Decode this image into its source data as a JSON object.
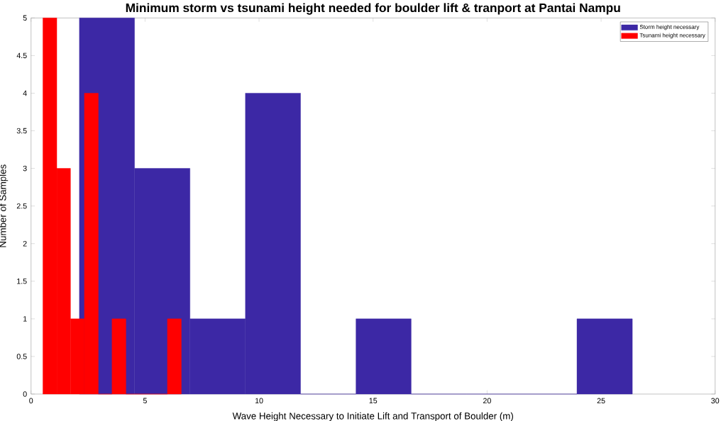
{
  "chart_data": {
    "type": "histogram",
    "title": "Minimum storm vs tsunami height needed for boulder lift & tranport at Pantai Nampu",
    "xlabel": "Wave Height Necessary to Initiate Lift and Transport of Boulder (m)",
    "ylabel": "Number of Samples",
    "bins": [
      2.12,
      4.54,
      6.97,
      9.4,
      11.82,
      14.25,
      16.67,
      19.1,
      21.52,
      23.94,
      26.37
    ],
    "series": [
      {
        "name": "Storm height necessary",
        "color": "#3c28a5",
        "values": [
          5,
          3,
          1,
          4,
          0,
          1,
          0,
          0,
          0,
          1
        ]
      },
      {
        "name": "Tsunami height necessary",
        "color": "#ff0000",
        "bins": [
          0.52,
          1.13,
          1.73,
          2.34,
          2.95,
          3.55,
          4.16,
          4.77,
          5.37,
          5.98,
          6.59
        ],
        "values": [
          5,
          3,
          1,
          4,
          0,
          1,
          0,
          0,
          0,
          1
        ]
      }
    ],
    "xlim": [
      0,
      30
    ],
    "ylim": [
      0,
      5
    ],
    "xticks": [
      0,
      5,
      10,
      15,
      20,
      25,
      30
    ],
    "yticks": [
      0,
      0.5,
      1,
      1.5,
      2,
      2.5,
      3,
      3.5,
      4,
      4.5,
      5
    ],
    "legend": "top right",
    "grid": false
  }
}
